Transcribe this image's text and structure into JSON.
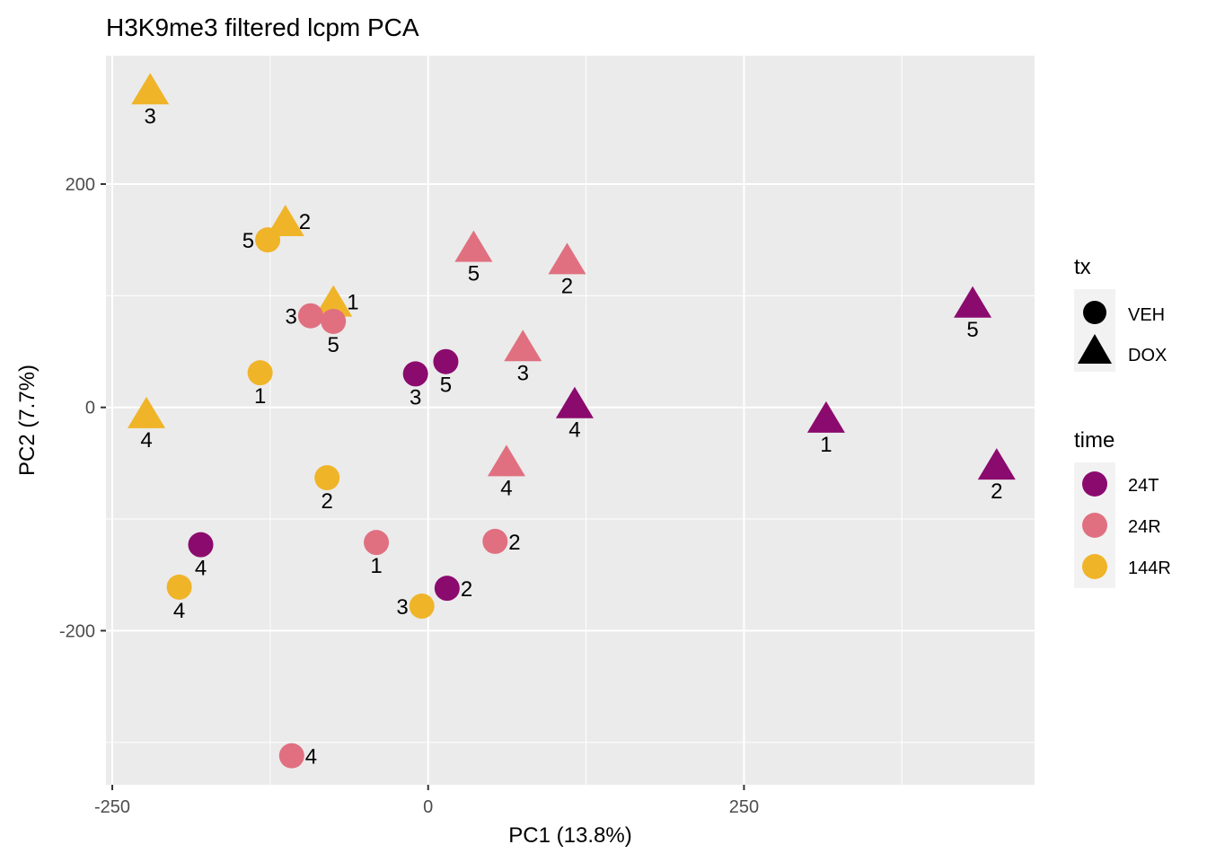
{
  "chart_data": {
    "type": "scatter",
    "title": "H3K9me3 filtered lcpm PCA",
    "xlabel": "PC1 (13.8%)",
    "ylabel": "PC2 (7.7%)",
    "xlim": [
      -255,
      480
    ],
    "ylim": [
      -338,
      315
    ],
    "x_ticks": [
      -250,
      0,
      250
    ],
    "y_ticks": [
      -200,
      0,
      200
    ],
    "x_minor": [
      -125,
      125,
      375
    ],
    "y_minor": [
      -300,
      -100,
      100
    ],
    "grid": true,
    "background": "#EBEBEB",
    "legend_position": "right",
    "legends": {
      "shape": {
        "title": "tx",
        "items": [
          {
            "label": "VEH",
            "shape": "circle"
          },
          {
            "label": "DOX",
            "shape": "triangle"
          }
        ]
      },
      "color": {
        "title": "time",
        "items": [
          {
            "label": "24T",
            "color": "#8B0A6E"
          },
          {
            "label": "24R",
            "color": "#E07080"
          },
          {
            "label": "144R",
            "color": "#F0B429"
          }
        ]
      }
    },
    "colors": {
      "24T": "#8B0A6E",
      "24R": "#E07080",
      "144R": "#F0B429"
    },
    "points": [
      {
        "x": -220,
        "y": 285,
        "time": "144R",
        "tx": "DOX",
        "label": "3",
        "lpos": "below"
      },
      {
        "x": -113,
        "y": 167,
        "time": "144R",
        "tx": "DOX",
        "label": "2",
        "lpos": "right"
      },
      {
        "x": -127,
        "y": 150,
        "time": "144R",
        "tx": "VEH",
        "label": "5",
        "lpos": "left"
      },
      {
        "x": -75,
        "y": 95,
        "time": "144R",
        "tx": "DOX",
        "label": "1",
        "lpos": "right"
      },
      {
        "x": -93,
        "y": 82,
        "time": "24R",
        "tx": "VEH",
        "label": "3",
        "lpos": "left"
      },
      {
        "x": -75,
        "y": 77,
        "time": "24R",
        "tx": "VEH",
        "label": "5",
        "lpos": "below"
      },
      {
        "x": -133,
        "y": 31,
        "time": "144R",
        "tx": "VEH",
        "label": "1",
        "lpos": "below"
      },
      {
        "x": -223,
        "y": -5,
        "time": "144R",
        "tx": "DOX",
        "label": "4",
        "lpos": "below"
      },
      {
        "x": -80,
        "y": -63,
        "time": "144R",
        "tx": "VEH",
        "label": "2",
        "lpos": "below"
      },
      {
        "x": -180,
        "y": -123,
        "time": "24T",
        "tx": "VEH",
        "label": "4",
        "lpos": "below"
      },
      {
        "x": -197,
        "y": -161,
        "time": "144R",
        "tx": "VEH",
        "label": "4",
        "lpos": "below"
      },
      {
        "x": -41,
        "y": -121,
        "time": "24R",
        "tx": "VEH",
        "label": "1",
        "lpos": "below"
      },
      {
        "x": -108,
        "y": -312,
        "time": "24R",
        "tx": "VEH",
        "label": "4",
        "lpos": "right"
      },
      {
        "x": -10,
        "y": 30,
        "time": "24T",
        "tx": "VEH",
        "label": "3",
        "lpos": "below"
      },
      {
        "x": 14,
        "y": 41,
        "time": "24T",
        "tx": "VEH",
        "label": "5",
        "lpos": "below"
      },
      {
        "x": -5,
        "y": -178,
        "time": "144R",
        "tx": "VEH",
        "label": "3",
        "lpos": "left"
      },
      {
        "x": 15,
        "y": -162,
        "time": "24T",
        "tx": "VEH",
        "label": "2",
        "lpos": "right"
      },
      {
        "x": 36,
        "y": 144,
        "time": "24R",
        "tx": "DOX",
        "label": "5",
        "lpos": "below"
      },
      {
        "x": 110,
        "y": 133,
        "time": "24R",
        "tx": "DOX",
        "label": "2",
        "lpos": "below"
      },
      {
        "x": 75,
        "y": 55,
        "time": "24R",
        "tx": "DOX",
        "label": "3",
        "lpos": "below"
      },
      {
        "x": 116,
        "y": 4,
        "time": "24T",
        "tx": "DOX",
        "label": "4",
        "lpos": "below"
      },
      {
        "x": 62,
        "y": -48,
        "time": "24R",
        "tx": "DOX",
        "label": "4",
        "lpos": "below"
      },
      {
        "x": 53,
        "y": -120,
        "time": "24R",
        "tx": "VEH",
        "label": "2",
        "lpos": "right"
      },
      {
        "x": 315,
        "y": -9,
        "time": "24T",
        "tx": "DOX",
        "label": "1",
        "lpos": "below"
      },
      {
        "x": 431,
        "y": 94,
        "time": "24T",
        "tx": "DOX",
        "label": "5",
        "lpos": "below"
      },
      {
        "x": 450,
        "y": -51,
        "time": "24T",
        "tx": "DOX",
        "label": "2",
        "lpos": "below"
      }
    ]
  }
}
